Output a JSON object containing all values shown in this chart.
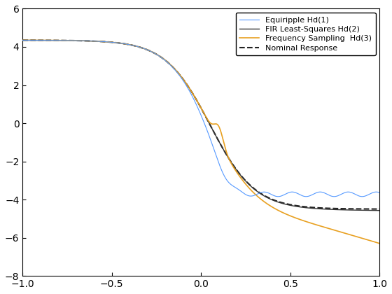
{
  "xlim": [
    -1,
    1
  ],
  "ylim": [
    -8,
    6
  ],
  "xticks": [
    -1,
    -0.5,
    0,
    0.5,
    1
  ],
  "yticks": [
    -8,
    -6,
    -4,
    -2,
    0,
    2,
    4,
    6
  ],
  "line_equiripple_color": "#5599ff",
  "line_firls_color": "#333333",
  "line_freqsamp_color": "#e8a020",
  "line_nominal_color": "#222222",
  "legend_labels": [
    "Equiripple Hd(1)",
    "FIR Least-Squares Hd(2)",
    "Frequency Sampling  Hd(3)",
    "Nominal Response"
  ],
  "figsize": [
    5.6,
    4.2
  ],
  "dpi": 100
}
